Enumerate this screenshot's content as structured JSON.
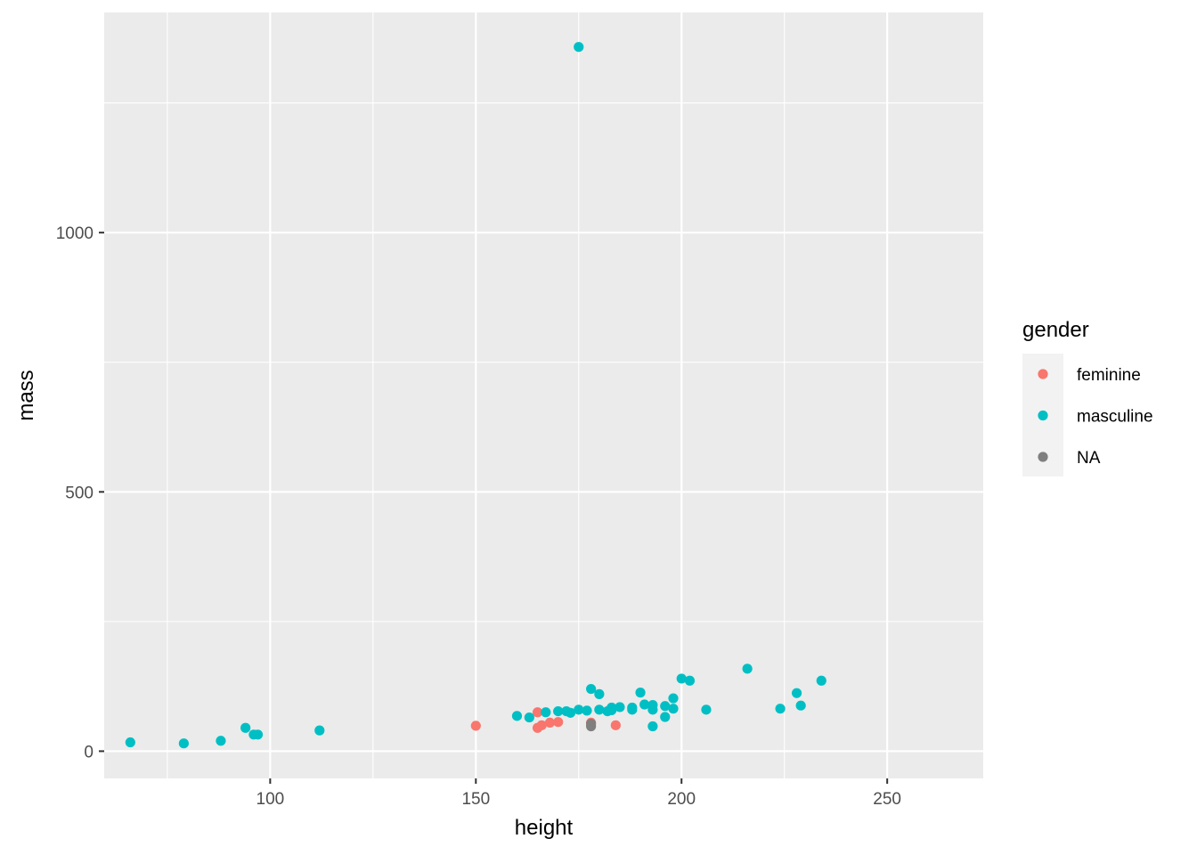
{
  "chart_data": {
    "type": "scatter",
    "title": "",
    "xlabel": "height",
    "ylabel": "mass",
    "xlim": [
      59.65,
      273.35
    ],
    "ylim": [
      -52.5,
      1424.5
    ],
    "x_ticks": [
      100,
      150,
      200,
      250
    ],
    "x_minor_ticks": [
      75,
      125,
      175,
      225
    ],
    "y_ticks": [
      0,
      500,
      1000
    ],
    "y_minor_ticks": [
      250,
      750,
      1250
    ],
    "grid": true,
    "legend": {
      "title": "gender",
      "position": "right"
    },
    "colors": {
      "feminine": "#F8766D",
      "masculine": "#00BFC4",
      "NA": "#7F7F7F",
      "panel": "#EBEBEB",
      "grid": "#FFFFFF"
    },
    "series": [
      {
        "name": "feminine",
        "points": [
          [
            150,
            49
          ],
          [
            165,
            45
          ],
          [
            165,
            75
          ],
          [
            166,
            50
          ],
          [
            168,
            55
          ],
          [
            170,
            56.2
          ],
          [
            178,
            55
          ],
          [
            184,
            50
          ]
        ]
      },
      {
        "name": "masculine",
        "points": [
          [
            66,
            17
          ],
          [
            79,
            15
          ],
          [
            88,
            20
          ],
          [
            94,
            45
          ],
          [
            96,
            32
          ],
          [
            97,
            32
          ],
          [
            112,
            40
          ],
          [
            160,
            68
          ],
          [
            163,
            65
          ],
          [
            167,
            75
          ],
          [
            170,
            77
          ],
          [
            172,
            77
          ],
          [
            173,
            74
          ],
          [
            175,
            80
          ],
          [
            175,
            1358
          ],
          [
            177,
            78.2
          ],
          [
            178,
            120
          ],
          [
            180,
            110
          ],
          [
            180,
            80
          ],
          [
            182,
            77
          ],
          [
            183,
            79
          ],
          [
            183,
            84
          ],
          [
            185,
            85
          ],
          [
            188,
            84
          ],
          [
            188,
            80
          ],
          [
            190,
            113
          ],
          [
            191,
            90
          ],
          [
            193,
            89
          ],
          [
            193,
            80
          ],
          [
            193,
            48
          ],
          [
            196,
            87
          ],
          [
            196,
            66
          ],
          [
            198,
            102
          ],
          [
            198,
            82
          ],
          [
            200,
            140
          ],
          [
            202,
            136
          ],
          [
            206,
            80
          ],
          [
            216,
            159
          ],
          [
            224,
            82
          ],
          [
            228,
            112
          ],
          [
            229,
            88
          ],
          [
            234,
            136
          ]
        ]
      },
      {
        "name": "NA",
        "points": [
          [
            178,
            48
          ],
          [
            178,
            53
          ]
        ]
      }
    ]
  }
}
